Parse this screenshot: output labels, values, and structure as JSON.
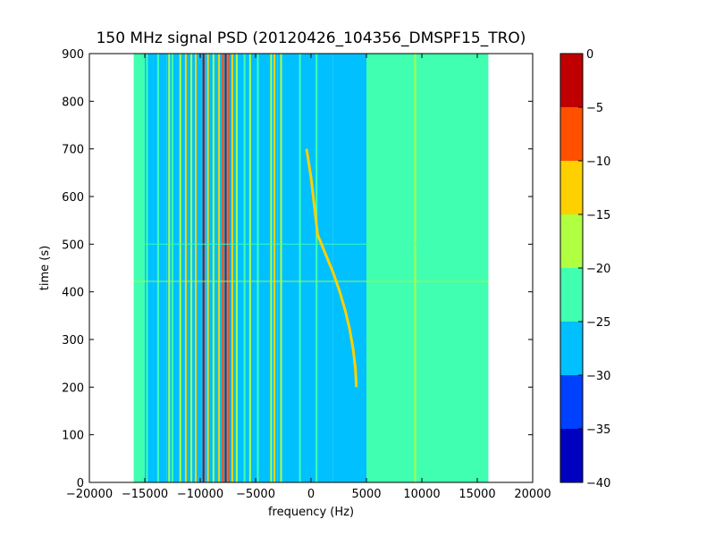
{
  "chart_data": {
    "type": "heatmap",
    "title": "150 MHz signal PSD (20120426_104356_DMSPF15_TRO)",
    "xlabel": "frequency (Hz)",
    "ylabel": "time (s)",
    "xlim": [
      -20000,
      20000
    ],
    "ylim": [
      0,
      900
    ],
    "x_ticks": [
      {
        "value": -20000,
        "label": "−20000"
      },
      {
        "value": -15000,
        "label": "−15000"
      },
      {
        "value": -10000,
        "label": "−10000"
      },
      {
        "value": -5000,
        "label": "−5000"
      },
      {
        "value": 0,
        "label": "0"
      },
      {
        "value": 5000,
        "label": "5000"
      },
      {
        "value": 10000,
        "label": "10000"
      },
      {
        "value": 15000,
        "label": "15000"
      },
      {
        "value": 20000,
        "label": "20000"
      }
    ],
    "y_ticks": [
      {
        "value": 0,
        "label": "0"
      },
      {
        "value": 100,
        "label": "100"
      },
      {
        "value": 200,
        "label": "200"
      },
      {
        "value": 300,
        "label": "300"
      },
      {
        "value": 400,
        "label": "400"
      },
      {
        "value": 500,
        "label": "500"
      },
      {
        "value": 600,
        "label": "600"
      },
      {
        "value": 700,
        "label": "700"
      },
      {
        "value": 800,
        "label": "800"
      },
      {
        "value": 900,
        "label": "900"
      }
    ],
    "data_x_range": [
      -16000,
      16000
    ],
    "colorbar": {
      "range": [
        -40,
        0
      ],
      "levels": [
        {
          "from": -40,
          "to": -35,
          "color": "#0000bf"
        },
        {
          "from": -35,
          "to": -30,
          "color": "#0040ff"
        },
        {
          "from": -30,
          "to": -25,
          "color": "#00c0ff"
        },
        {
          "from": -25,
          "to": -20,
          "color": "#40ffb0"
        },
        {
          "from": -20,
          "to": -15,
          "color": "#b0ff40"
        },
        {
          "from": -15,
          "to": -10,
          "color": "#ffd000"
        },
        {
          "from": -10,
          "to": -5,
          "color": "#ff5000"
        },
        {
          "from": -5,
          "to": 0,
          "color": "#c00000"
        }
      ],
      "ticks": [
        {
          "value": 0,
          "label": "0"
        },
        {
          "value": -5,
          "label": "−5"
        },
        {
          "value": -10,
          "label": "−10"
        },
        {
          "value": -15,
          "label": "−15"
        },
        {
          "value": -20,
          "label": "−20"
        },
        {
          "value": -25,
          "label": "−25"
        },
        {
          "value": -30,
          "label": "−30"
        },
        {
          "value": -35,
          "label": "−35"
        },
        {
          "value": -40,
          "label": "−40"
        }
      ]
    },
    "regions": [
      {
        "from": -16000,
        "to": -15000,
        "level": -22
      },
      {
        "from": -15000,
        "to": -14200,
        "level": -27
      },
      {
        "from": -14200,
        "to": -13000,
        "level": -28
      },
      {
        "from": -13000,
        "to": -3000,
        "level": -28
      },
      {
        "from": -3000,
        "to": 2000,
        "level": -27
      },
      {
        "from": 2000,
        "to": 5000,
        "level": -26
      },
      {
        "from": 5000,
        "to": 16000,
        "level": -22
      }
    ],
    "lines": [
      {
        "x": -15500,
        "level": -22
      },
      {
        "x": -14800,
        "level": -22
      },
      {
        "x": -13800,
        "level": -22
      },
      {
        "x": -12800,
        "level": -18
      },
      {
        "x": -12500,
        "level": -22
      },
      {
        "x": -11800,
        "level": -18
      },
      {
        "x": -11300,
        "level": -14
      },
      {
        "x": -10800,
        "level": -18
      },
      {
        "x": -10400,
        "level": -14
      },
      {
        "x": -9700,
        "level": -4
      },
      {
        "x": -9300,
        "level": -14
      },
      {
        "x": -8800,
        "level": -18
      },
      {
        "x": -8300,
        "level": -12
      },
      {
        "x": -7950,
        "level": -8
      },
      {
        "x": -7700,
        "level": -4
      },
      {
        "x": -7400,
        "level": -8
      },
      {
        "x": -7100,
        "level": -12
      },
      {
        "x": -6700,
        "level": -18
      },
      {
        "x": -6000,
        "level": -22
      },
      {
        "x": -5500,
        "level": -18
      },
      {
        "x": -4800,
        "level": -22
      },
      {
        "x": -3600,
        "level": -18
      },
      {
        "x": -3300,
        "level": -14
      },
      {
        "x": -2700,
        "level": -18
      },
      {
        "x": -1000,
        "level": -22
      },
      {
        "x": 500,
        "level": -22
      },
      {
        "x": 9400,
        "level": -18
      },
      {
        "x": 12200,
        "level": -22
      }
    ],
    "horizontal_lines": [
      {
        "y": 422,
        "level": -18
      },
      {
        "y": 500,
        "level": -22
      }
    ],
    "doppler_track": {
      "level": -12,
      "points": [
        {
          "t": 700,
          "f": -400
        },
        {
          "t": 640,
          "f": 0
        },
        {
          "t": 580,
          "f": 300
        },
        {
          "t": 520,
          "f": 600
        },
        {
          "t": 480,
          "f": 1300
        },
        {
          "t": 440,
          "f": 2000
        },
        {
          "t": 400,
          "f": 2600
        },
        {
          "t": 360,
          "f": 3100
        },
        {
          "t": 320,
          "f": 3500
        },
        {
          "t": 280,
          "f": 3800
        },
        {
          "t": 240,
          "f": 4000
        },
        {
          "t": 200,
          "f": 4100
        }
      ]
    }
  }
}
